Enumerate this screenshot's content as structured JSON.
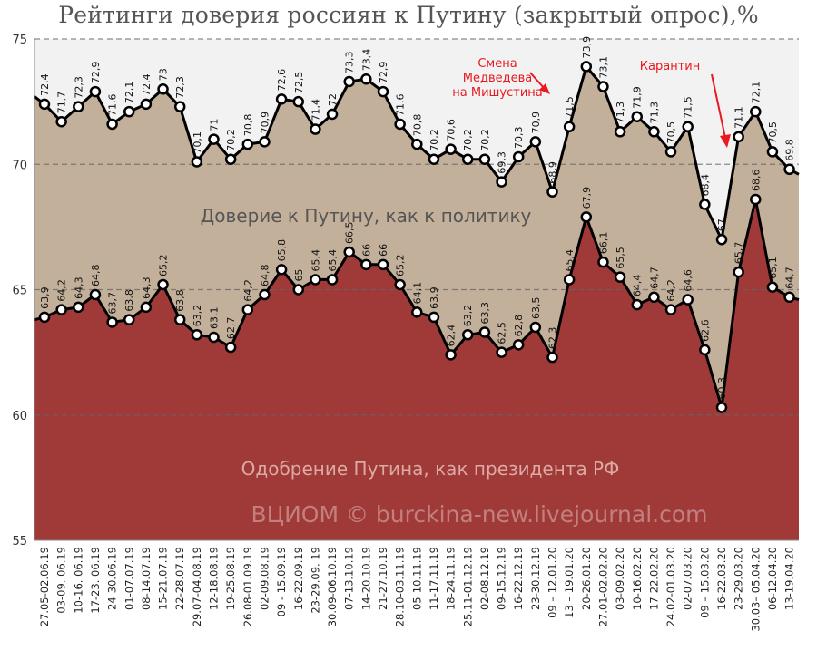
{
  "chart_data": {
    "type": "area",
    "title": "Рейтинги доверия россиян к Путину (закрытый опрос),%",
    "ylim": [
      55,
      75
    ],
    "yticks": [
      55,
      60,
      65,
      70,
      75
    ],
    "categories": [
      "27.05-02.06.19",
      "03-09. 06.19",
      "10-16. 06.19",
      "17-23. 06.19",
      "24-30.06.19",
      "01-07.07.19",
      "08-14.07.19",
      "15-21.07.19",
      "22-28.07.19",
      "29.07-04.08.19",
      "12-18.08.19",
      "19-25.08.19",
      "26.08-01.09.19",
      "02-09.08.19",
      "09 - 15.09.19",
      "16-22.09.19",
      "23-29.09. 19",
      "30.09-06.10.19",
      "07-13.10.19",
      "14-20.10.19",
      "21-27.10.19",
      "28.10-03.11.19",
      "05-10.11.19",
      "11-17.11.19",
      "18-24.11.19",
      "25.11-01.12.19",
      "02-08.12.19",
      "09-15.12.19",
      "16-22.12.19",
      "23-30.12.19",
      "09 – 12.01.20",
      "13 – 19.01.20",
      "20-26.01.20",
      "27.01-02.02.20",
      "03-09.02.20",
      "10-16.02.20",
      "17-22.02.20",
      "24.02-01.03.20",
      "02-07.03.20",
      "09 – 15.03.20",
      "16-22.03.20",
      "23-29.03.20",
      "30.03– 05.04.20",
      "06-12.04.20",
      "13-19.04.20"
    ],
    "tick_labels": [
      "27.05-02.06.19",
      "03-09. 06.19",
      "10-16. 06.19",
      "17-23. 06.19",
      "24-30.06.19",
      "01-07.07.19",
      "08-14.07.19",
      "15-21.07.19",
      "22-28.07.19",
      "29.07-04.08.19",
      "12-18.08.19",
      "19-25.08.19",
      "26.08-01.09.19",
      "02-09.08.19",
      "09 - 15.09.19",
      "16-22.09.19",
      "23-29.09. 19",
      "30.09-06.10.19",
      "07-13.10.19",
      "14-20.10.19",
      "21-27.10.19",
      "28.10-03.11.19",
      "05-10.11.19",
      "11-17.11.19",
      "18-24.11.19",
      "25.11-01.12.19",
      "02-08.12.19",
      "09-15.12.19",
      "16-22.12.19",
      "23-30.12.19",
      "09 – 12.01.20",
      "13 – 19.01.20",
      "20-26.01.20",
      "27.01-02.02.20",
      "03-09.02.20",
      "10-16.02.20",
      "17-22.02.20",
      "24.02-01.03.20",
      "02-07.03.20",
      "09 – 15.03.20",
      "16-22.03.20",
      "23-29.03.20",
      "30.03– 05.04.20",
      "06-12.04.20",
      "13-19.04.20"
    ],
    "series": [
      {
        "name": "Доверие к Путину, как к политику",
        "color": "#c3b09a",
        "values": [
          72.4,
          71.7,
          72.3,
          72.9,
          71.6,
          72.1,
          72.4,
          73,
          72.3,
          70.1,
          71,
          70.2,
          70.8,
          70.9,
          72.6,
          72.5,
          71.4,
          72,
          73.3,
          73.4,
          72.9,
          71.6,
          70.8,
          70.2,
          70.6,
          70.2,
          70.2,
          69.3,
          70.3,
          70.9,
          68.9,
          71.5,
          73.9,
          73.1,
          71.3,
          71.9,
          71.3,
          70.5,
          71.5,
          68.4,
          67,
          71.1,
          72.1,
          70.5,
          69.8
        ],
        "labels": [
          "72,4",
          "71,7",
          "72,3",
          "72,9",
          "71,6",
          "72,1",
          "72,4",
          "73",
          "72,3",
          "70,1",
          "71",
          "70,2",
          "70,8",
          "70,9",
          "72,6",
          "72,5",
          "71,4",
          "72",
          "73,3",
          "73,4",
          "72,9",
          "71,6",
          "70,8",
          "70,2",
          "70,6",
          "70,2",
          "70,2",
          "69,3",
          "70,3",
          "70,9",
          "68,9",
          "71,5",
          "73,9",
          "73,1",
          "71,3",
          "71,9",
          "71,3",
          "70,5",
          "71,5",
          "68,4",
          "67",
          "71,1",
          "72,1",
          "70,5",
          "69,8"
        ]
      },
      {
        "name": "Одобрение Путина, как президента РФ",
        "color": "#a03a38",
        "values": [
          63.9,
          64.2,
          64.3,
          64.8,
          63.7,
          63.8,
          64.3,
          65.2,
          63.8,
          63.2,
          63.1,
          62.7,
          64.2,
          64.8,
          65.8,
          65,
          65.4,
          65.4,
          66.5,
          66,
          66,
          65.2,
          64.1,
          63.9,
          62.4,
          63.2,
          63.3,
          62.5,
          62.8,
          63.5,
          62.3,
          65.4,
          67.9,
          66.1,
          65.5,
          64.4,
          64.7,
          64.2,
          64.6,
          62.6,
          60.3,
          65.7,
          68.6,
          65.1,
          64.7
        ],
        "labels": [
          "63,9",
          "64,2",
          "64,3",
          "64,8",
          "63,7",
          "63,8",
          "64,3",
          "65,2",
          "63,8",
          "63,2",
          "63,1",
          "62,7",
          "64,2",
          "64,8",
          "65,8",
          "65",
          "65,4",
          "65,4",
          "66,5",
          "66",
          "66",
          "65,2",
          "64,1",
          "63,9",
          "62,4",
          "63,2",
          "63,3",
          "62,5",
          "62,8",
          "63,5",
          "62,3",
          "65,4",
          "67,9",
          "66,1",
          "65,5",
          "64,4",
          "64,7",
          "64,2",
          "64,6",
          "62,6",
          "60,3",
          "65,7",
          "68,6",
          "65,1",
          "64,7"
        ]
      }
    ],
    "start_values": {
      "trust": 72.7,
      "approval": 63.8
    },
    "end_values": {
      "trust": 69.6,
      "approval": 64.6
    },
    "annotations": [
      {
        "lines": [
          "Смена",
          "Медведева",
          "на Мишустина"
        ],
        "color": "#e8191f"
      },
      {
        "lines": [
          "Карантин"
        ],
        "color": "#e8191f"
      }
    ],
    "area_labels": {
      "upper": "Доверие к Путину, как к политику",
      "lower": "Одобрение Путина, как президента РФ"
    },
    "watermark": "ВЦИОМ © burckina-new.livejournal.com",
    "background_color": "#f2f2f2",
    "grid": "dashed"
  }
}
